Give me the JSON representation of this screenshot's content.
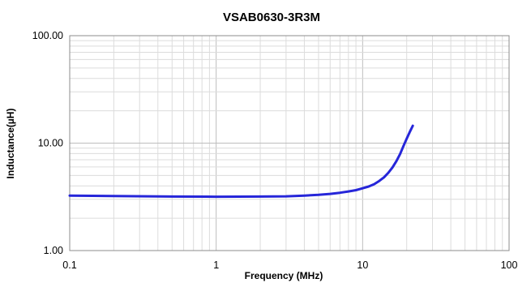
{
  "chart_data": {
    "type": "line",
    "title": "VSAB0630-3R3M",
    "xlabel": "Frequency  (MHz)",
    "ylabel": "Inductance(µH)",
    "x_scale": "log",
    "y_scale": "log",
    "xlim": [
      0.1,
      100
    ],
    "ylim": [
      1,
      100
    ],
    "x_ticks": [
      {
        "value": 0.1,
        "label": "0.1"
      },
      {
        "value": 1,
        "label": "1"
      },
      {
        "value": 10,
        "label": "10"
      },
      {
        "value": 100,
        "label": "100"
      }
    ],
    "y_ticks": [
      {
        "value": 1,
        "label": "1.00"
      },
      {
        "value": 10,
        "label": "10.00"
      },
      {
        "value": 100,
        "label": "100.00"
      }
    ],
    "grid": true,
    "line_color": "#2626d9",
    "series": [
      {
        "x": [
          0.1,
          0.2,
          0.5,
          1,
          2,
          3,
          4,
          5,
          6,
          7,
          8,
          9,
          10,
          11,
          12,
          13,
          14,
          15,
          16,
          17,
          18,
          19,
          20,
          21,
          22
        ],
        "y": [
          3.25,
          3.22,
          3.18,
          3.17,
          3.18,
          3.2,
          3.25,
          3.3,
          3.37,
          3.45,
          3.55,
          3.65,
          3.8,
          3.95,
          4.15,
          4.45,
          4.8,
          5.3,
          5.95,
          6.8,
          7.9,
          9.4,
          11.0,
          12.7,
          14.5
        ]
      }
    ]
  }
}
